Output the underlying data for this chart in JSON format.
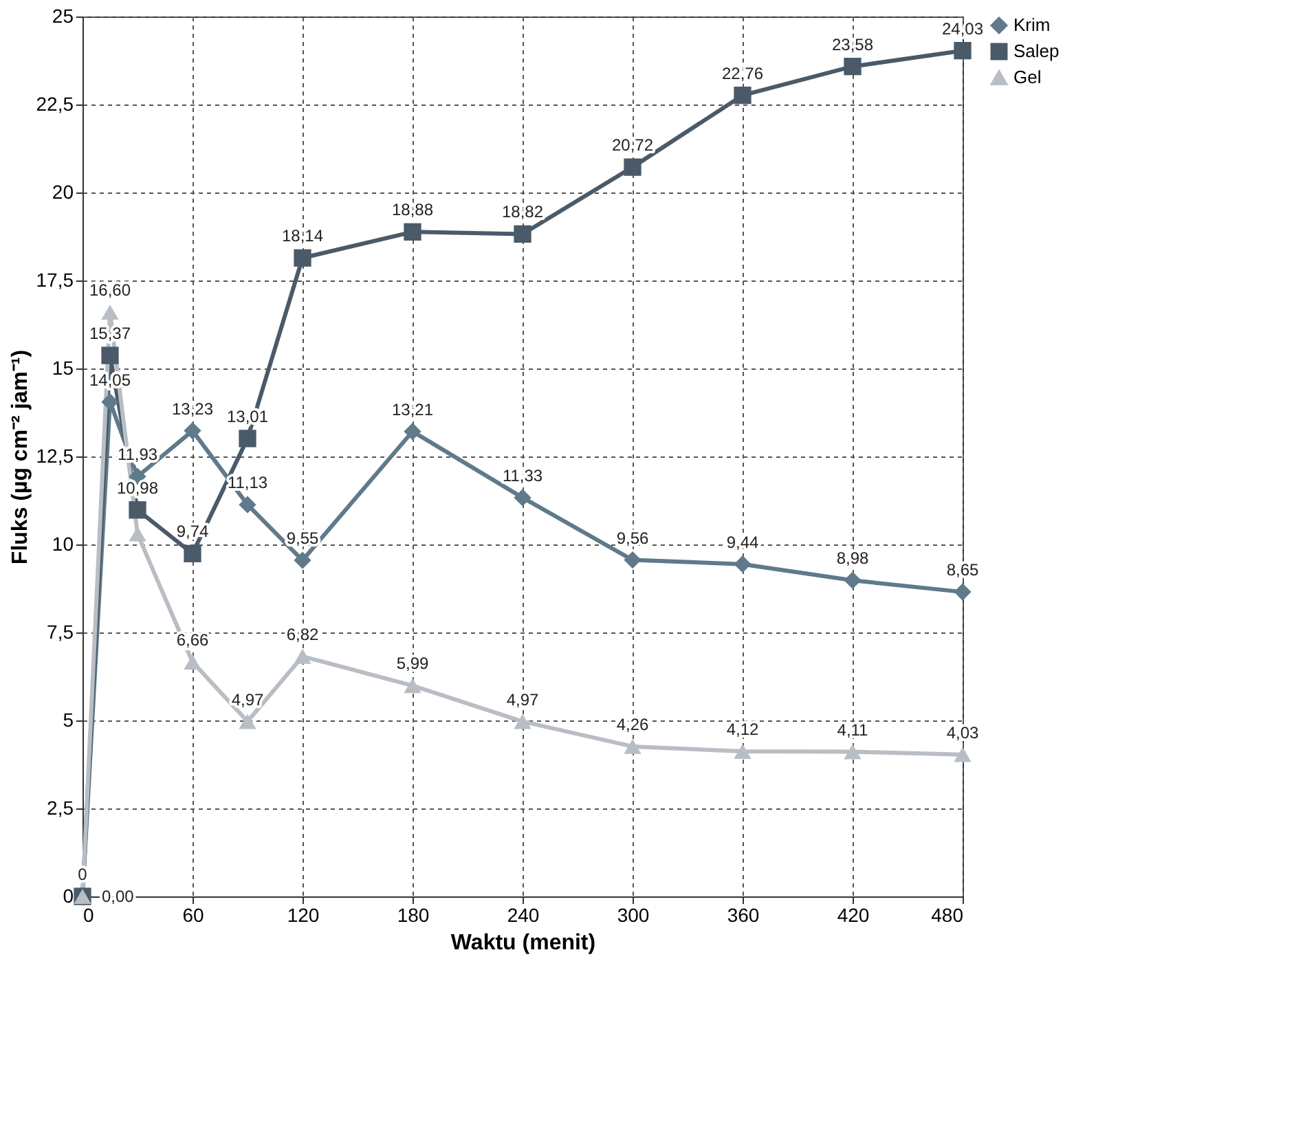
{
  "chart_data": {
    "type": "line",
    "xlabel": "Waktu (menit)",
    "ylabel": "Fluks (µg cm⁻² jam⁻¹)",
    "x": [
      0,
      15,
      30,
      60,
      90,
      120,
      180,
      240,
      300,
      360,
      420,
      480
    ],
    "xlim": [
      0,
      480
    ],
    "xticks": [
      0,
      60,
      120,
      180,
      240,
      300,
      360,
      420,
      480
    ],
    "ylim": [
      0,
      25
    ],
    "yticks": [
      0,
      {
        "value": 2.5,
        "label": "2,5"
      },
      5,
      {
        "value": 7.5,
        "label": "7,5"
      },
      10,
      {
        "value": 12.5,
        "label": "12,5"
      },
      15,
      {
        "value": 17.5,
        "label": "17,5"
      },
      20,
      {
        "value": 22.5,
        "label": "22,5"
      },
      25
    ],
    "grid": true,
    "legend": "right",
    "series": [
      {
        "name": "Krim",
        "color": "#5f7a8a",
        "marker": "diamond",
        "values": [
          0,
          14.05,
          11.93,
          13.23,
          11.13,
          9.55,
          13.21,
          11.33,
          9.56,
          9.44,
          8.98,
          8.65
        ],
        "value_labels": [
          null,
          "14,05",
          "11,93",
          "13,23",
          "11,13",
          "9,55",
          "13,21",
          "11,33",
          "9,56",
          "9,44",
          "8,98",
          "8,65"
        ]
      },
      {
        "name": "Salep",
        "color": "#4a5a68",
        "marker": "square",
        "values": [
          0,
          15.37,
          10.98,
          9.74,
          13.01,
          18.14,
          18.88,
          18.82,
          20.72,
          22.76,
          23.58,
          24.03
        ],
        "value_labels": [
          "0",
          "15,37",
          "10,98",
          "9,74",
          "13,01",
          "18,14",
          "18,88",
          "18,82",
          "20,72",
          "22,76",
          "23,58",
          "24,03"
        ]
      },
      {
        "name": "Gel",
        "color": "#b8bec4",
        "marker": "triangle",
        "values": [
          0,
          16.6,
          10.3,
          6.66,
          4.97,
          6.82,
          5.99,
          4.97,
          4.26,
          4.12,
          4.11,
          4.03
        ],
        "value_labels": [
          "0,00",
          "16,60",
          null,
          "6,66",
          "4,97",
          "6,82",
          "5,99",
          "4,97",
          "4,26",
          "4,12",
          "4,11",
          "4,03"
        ]
      }
    ]
  }
}
